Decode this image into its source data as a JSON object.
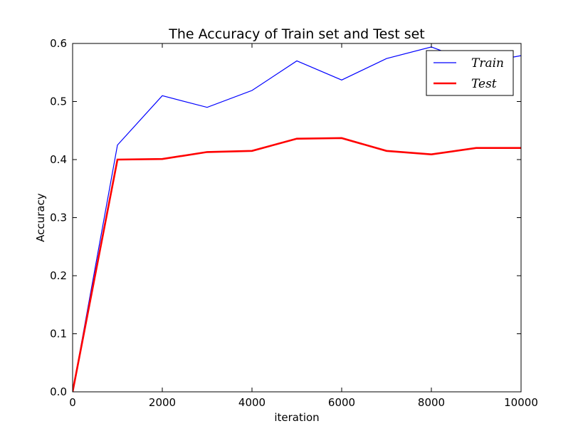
{
  "chart_data": {
    "type": "line",
    "title": "The Accuracy of Train set and Test set",
    "xlabel": "iteration",
    "ylabel": "Accuracy",
    "xlim": [
      0,
      10000
    ],
    "ylim": [
      0.0,
      0.6
    ],
    "x_ticks": [
      0,
      2000,
      4000,
      6000,
      8000,
      10000
    ],
    "x_tick_labels": [
      "0",
      "2000",
      "4000",
      "6000",
      "8000",
      "10000"
    ],
    "y_ticks": [
      0.0,
      0.1,
      0.2,
      0.3,
      0.4,
      0.5,
      0.6
    ],
    "y_tick_labels": [
      "0.0",
      "0.1",
      "0.2",
      "0.3",
      "0.4",
      "0.5",
      "0.6"
    ],
    "grid": false,
    "legend_position": "top-right",
    "x": [
      0,
      1000,
      2000,
      3000,
      4000,
      5000,
      6000,
      7000,
      8000,
      9000,
      10000
    ],
    "series": [
      {
        "name": "Train",
        "color": "#0000ff",
        "values": [
          0.0,
          0.425,
          0.51,
          0.49,
          0.519,
          0.57,
          0.537,
          0.574,
          0.594,
          0.565,
          0.579
        ]
      },
      {
        "name": "Test",
        "color": "#ff0000",
        "values": [
          0.0,
          0.4,
          0.401,
          0.413,
          0.415,
          0.436,
          0.437,
          0.415,
          0.409,
          0.42,
          0.42
        ]
      }
    ]
  }
}
